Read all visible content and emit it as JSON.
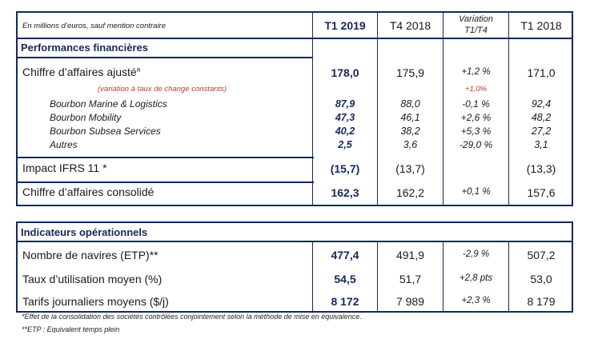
{
  "header": {
    "units_note": "En millions d’euros, sauf mention contraire",
    "col_t1_2019": "T1 2019",
    "col_t4_2018": "T4 2018",
    "col_var_line1": "Variation",
    "col_var_line2": "T1/T4",
    "col_t1_2018": "T1 2018"
  },
  "section1": {
    "title": "Performances financières",
    "rows": [
      {
        "label": "Chiffre d’affaires ajusté",
        "sup": "a",
        "t1_2019": "178,0",
        "t4_2018": "175,9",
        "var": "+1,2 %",
        "t1_2018": "171,0"
      },
      {
        "label": "(variation à taux de change constants)",
        "var": "+1,0%"
      },
      {
        "label": "Bourbon Marine & Logistics",
        "t1_2019": "87,9",
        "t4_2018": "88,0",
        "var": "-0,1 %",
        "t1_2018": "92,4"
      },
      {
        "label": "Bourbon Mobility",
        "t1_2019": "47,3",
        "t4_2018": "46,1",
        "var": "+2,6 %",
        "t1_2018": "48,2"
      },
      {
        "label": "Bourbon Subsea Services",
        "t1_2019": "40,2",
        "t4_2018": "38,2",
        "var": "+5,3 %",
        "t1_2018": "27,2"
      },
      {
        "label": "Autres",
        "t1_2019": "2,5",
        "t4_2018": "3,6",
        "var": "-29,0 %",
        "t1_2018": "3,1"
      },
      {
        "label": "Impact IFRS 11 *",
        "t1_2019": "(15,7)",
        "t4_2018": "(13,7)",
        "var": "",
        "t1_2018": "(13,3)"
      },
      {
        "label": "Chiffre d’affaires consolidé",
        "t1_2019": "162,3",
        "t4_2018": "162,2",
        "var": "+0,1 %",
        "t1_2018": "157,6"
      }
    ]
  },
  "section2": {
    "title": "Indicateurs opérationnels",
    "rows": [
      {
        "label": "Nombre de navires (ETP)**",
        "t1_2019": "477,4",
        "t4_2018": "491,9",
        "var": "-2,9 %",
        "t1_2018": "507,2"
      },
      {
        "label": "Taux d’utilisation moyen (%)",
        "t1_2019": "54,5",
        "t4_2018": "51,7",
        "var": "+2,8 pts",
        "t1_2018": "53,0"
      },
      {
        "label": "Tarifs journaliers moyens ($/j)",
        "t1_2019": "8 172",
        "t4_2018": "7 989",
        "var": "+2,3 %",
        "t1_2018": "8 179"
      }
    ]
  },
  "footnotes": {
    "note1": "*Effet de la consolidation des sociétés contrôlées conjointement selon la méthode de mise en équivalence.",
    "note2": "**ETP : Equivalent temps plein"
  }
}
